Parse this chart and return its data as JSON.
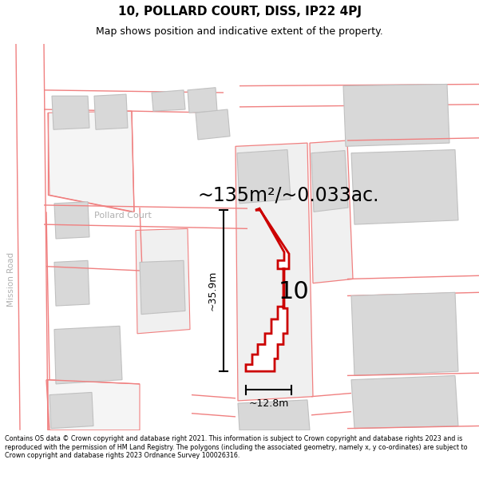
{
  "title": "10, POLLARD COURT, DISS, IP22 4PJ",
  "subtitle": "Map shows position and indicative extent of the property.",
  "footer": "Contains OS data © Crown copyright and database right 2021. This information is subject to Crown copyright and database rights 2023 and is reproduced with the permission of HM Land Registry. The polygons (including the associated geometry, namely x, y co-ordinates) are subject to Crown copyright and database rights 2023 Ordnance Survey 100026316.",
  "area_text": "~135m²/~0.033ac.",
  "dim_height": "~35.9m",
  "dim_width": "~12.8m",
  "number_label": "10",
  "road_label_v": "Mission Road",
  "road_label_h": "Pollard Court",
  "bg_color": "#ffffff",
  "map_bg": "#ffffff",
  "building_fill": "#d8d8d8",
  "building_edge": "#c0c0c0",
  "road_line_color": "#f08080",
  "highlight_color": "#cc0000",
  "highlight_fill": "#ffffff",
  "dim_color": "#000000",
  "title_color": "#000000",
  "footer_color": "#000000",
  "road_label_color": "#b0b0b0",
  "area_text_color": "#000000"
}
